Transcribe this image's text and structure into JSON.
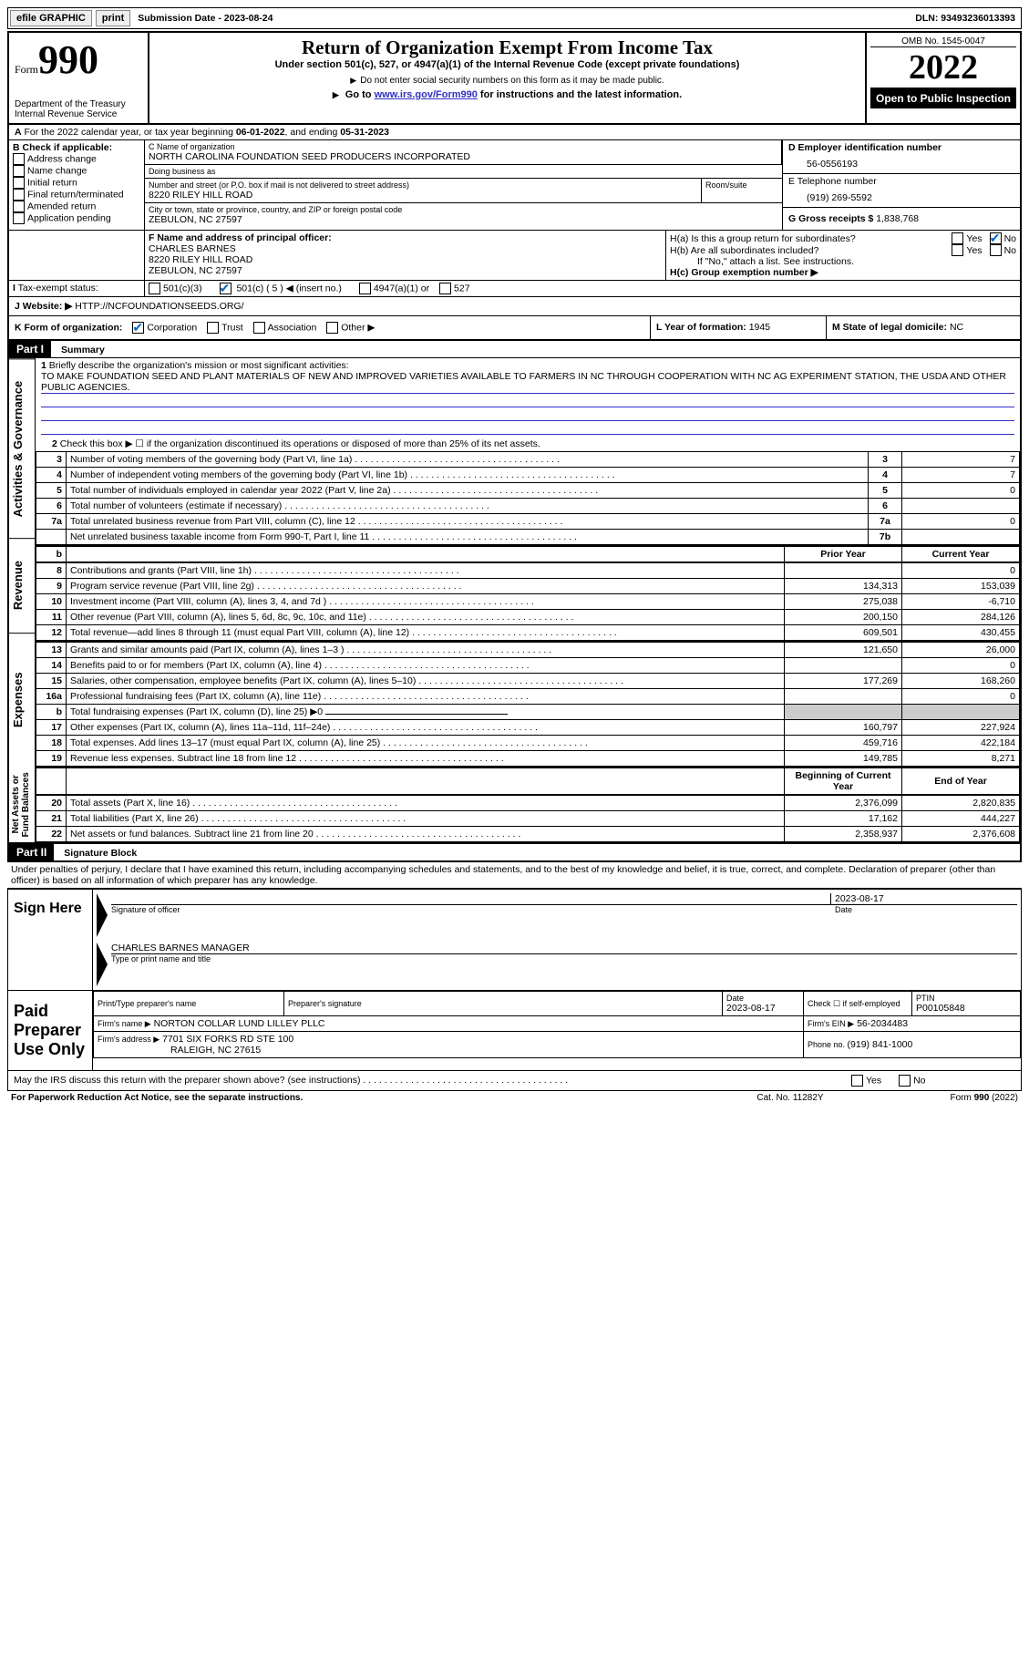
{
  "topbar": {
    "efile": "efile GRAPHIC",
    "print": "print",
    "subdate_label": "Submission Date - ",
    "subdate": "2023-08-24",
    "dln_label": "DLN: ",
    "dln": "93493236013393"
  },
  "header": {
    "form_word": "Form",
    "form_num": "990",
    "dept": "Department of the Treasury",
    "irs": "Internal Revenue Service",
    "title": "Return of Organization Exempt From Income Tax",
    "sub1": "Under section 501(c), 527, or 4947(a)(1) of the Internal Revenue Code (except private foundations)",
    "sub2": "Do not enter social security numbers on this form as it may be made public.",
    "sub3_a": "Go to ",
    "sub3_link": "www.irs.gov/Form990",
    "sub3_b": " for instructions and the latest information.",
    "omb": "OMB No. 1545-0047",
    "year": "2022",
    "open": "Open to Public Inspection"
  },
  "A": {
    "text_a": "For the 2022 calendar year, or tax year beginning ",
    "begin": "06-01-2022",
    "text_b": ", and ending ",
    "end": "05-31-2023"
  },
  "B": {
    "label": "B Check if applicable:",
    "items": [
      "Address change",
      "Name change",
      "Initial return",
      "Final return/terminated",
      "Amended return",
      "Application pending"
    ]
  },
  "C": {
    "name_label": "C Name of organization",
    "name": "NORTH CAROLINA FOUNDATION SEED PRODUCERS INCORPORATED",
    "dba": "Doing business as",
    "addr_label": "Number and street (or P.O. box if mail is not delivered to street address)",
    "room": "Room/suite",
    "addr": "8220 RILEY HILL ROAD",
    "city_label": "City or town, state or province, country, and ZIP or foreign postal code",
    "city": "ZEBULON, NC  27597"
  },
  "D": {
    "label": "D Employer identification number",
    "val": "56-0556193"
  },
  "E": {
    "label": "E Telephone number",
    "val": "(919) 269-5592"
  },
  "G": {
    "label": "G Gross receipts $ ",
    "val": "1,838,768"
  },
  "F": {
    "label": "F Name and address of principal officer:",
    "name": "CHARLES BARNES",
    "addr": "8220 RILEY HILL ROAD",
    "city": "ZEBULON, NC  27597"
  },
  "H": {
    "a": "H(a)  Is this a group return for subordinates?",
    "b": "H(b)  Are all subordinates included?",
    "b_note": "If \"No,\" attach a list. See instructions.",
    "c": "H(c)  Group exemption number ▶",
    "yes": "Yes",
    "no": "No"
  },
  "I": {
    "label": "Tax-exempt status:",
    "opt1": "501(c)(3)",
    "opt2a": "501(c) ( ",
    "opt2b": "5",
    "opt2c": " ) ◀ (insert no.)",
    "opt3": "4947(a)(1) or",
    "opt4": "527"
  },
  "J": {
    "label": "Website: ▶",
    "val": "HTTP://NCFOUNDATIONSEEDS.ORG/"
  },
  "K": {
    "label": "K Form of organization:",
    "corp": "Corporation",
    "trust": "Trust",
    "assoc": "Association",
    "other": "Other ▶"
  },
  "L": {
    "label": "L Year of formation: ",
    "val": "1945"
  },
  "M": {
    "label": "M State of legal domicile: ",
    "val": "NC"
  },
  "part1": {
    "num": "Part I",
    "title": "Summary"
  },
  "sections": {
    "gov": "Activities & Governance",
    "rev": "Revenue",
    "exp": "Expenses",
    "net": "Net Assets or Fund Balances"
  },
  "line1": {
    "num": "1",
    "text": "Briefly describe the organization's mission or most significant activities:",
    "mission": "TO MAKE FOUNDATION SEED AND PLANT MATERIALS OF NEW AND IMPROVED VARIETIES AVAILABLE TO FARMERS IN NC THROUGH COOPERATION WITH NC AG EXPERIMENT STATION, THE USDA AND OTHER PUBLIC AGENCIES."
  },
  "line2": {
    "num": "2",
    "text": "Check this box ▶ ☐ if the organization discontinued its operations or disposed of more than 25% of its net assets."
  },
  "gov_lines": [
    {
      "n": "3",
      "t": "Number of voting members of the governing body (Part VI, line 1a)",
      "box": "3",
      "v": "7"
    },
    {
      "n": "4",
      "t": "Number of independent voting members of the governing body (Part VI, line 1b)",
      "box": "4",
      "v": "7"
    },
    {
      "n": "5",
      "t": "Total number of individuals employed in calendar year 2022 (Part V, line 2a)",
      "box": "5",
      "v": "0"
    },
    {
      "n": "6",
      "t": "Total number of volunteers (estimate if necessary)",
      "box": "6",
      "v": ""
    },
    {
      "n": "7a",
      "t": "Total unrelated business revenue from Part VIII, column (C), line 12",
      "box": "7a",
      "v": "0"
    },
    {
      "n": "",
      "t": "Net unrelated business taxable income from Form 990-T, Part I, line 11",
      "box": "7b",
      "v": ""
    }
  ],
  "col_headers": {
    "b": "b",
    "prior": "Prior Year",
    "current": "Current Year"
  },
  "rev_lines": [
    {
      "n": "8",
      "t": "Contributions and grants (Part VIII, line 1h)",
      "p": "",
      "c": "0"
    },
    {
      "n": "9",
      "t": "Program service revenue (Part VIII, line 2g)",
      "p": "134,313",
      "c": "153,039"
    },
    {
      "n": "10",
      "t": "Investment income (Part VIII, column (A), lines 3, 4, and 7d )",
      "p": "275,038",
      "c": "-6,710"
    },
    {
      "n": "11",
      "t": "Other revenue (Part VIII, column (A), lines 5, 6d, 8c, 9c, 10c, and 11e)",
      "p": "200,150",
      "c": "284,126"
    },
    {
      "n": "12",
      "t": "Total revenue—add lines 8 through 11 (must equal Part VIII, column (A), line 12)",
      "p": "609,501",
      "c": "430,455"
    }
  ],
  "exp_lines": [
    {
      "n": "13",
      "t": "Grants and similar amounts paid (Part IX, column (A), lines 1–3 )",
      "p": "121,650",
      "c": "26,000"
    },
    {
      "n": "14",
      "t": "Benefits paid to or for members (Part IX, column (A), line 4)",
      "p": "",
      "c": "0"
    },
    {
      "n": "15",
      "t": "Salaries, other compensation, employee benefits (Part IX, column (A), lines 5–10)",
      "p": "177,269",
      "c": "168,260"
    },
    {
      "n": "16a",
      "t": "Professional fundraising fees (Part IX, column (A), line 11e)",
      "p": "",
      "c": "0"
    },
    {
      "n": "b",
      "t": "Total fundraising expenses (Part IX, column (D), line 25) ▶0",
      "p": "shade",
      "c": "shade"
    },
    {
      "n": "17",
      "t": "Other expenses (Part IX, column (A), lines 11a–11d, 11f–24e)",
      "p": "160,797",
      "c": "227,924"
    },
    {
      "n": "18",
      "t": "Total expenses. Add lines 13–17 (must equal Part IX, column (A), line 25)",
      "p": "459,716",
      "c": "422,184"
    },
    {
      "n": "19",
      "t": "Revenue less expenses. Subtract line 18 from line 12",
      "p": "149,785",
      "c": "8,271"
    }
  ],
  "net_headers": {
    "begin": "Beginning of Current Year",
    "end": "End of Year"
  },
  "net_lines": [
    {
      "n": "20",
      "t": "Total assets (Part X, line 16)",
      "p": "2,376,099",
      "c": "2,820,835"
    },
    {
      "n": "21",
      "t": "Total liabilities (Part X, line 26)",
      "p": "17,162",
      "c": "444,227"
    },
    {
      "n": "22",
      "t": "Net assets or fund balances. Subtract line 21 from line 20",
      "p": "2,358,937",
      "c": "2,376,608"
    }
  ],
  "part2": {
    "num": "Part II",
    "title": "Signature Block"
  },
  "penalties": "Under penalties of perjury, I declare that I have examined this return, including accompanying schedules and statements, and to the best of my knowledge and belief, it is true, correct, and complete. Declaration of preparer (other than officer) is based on all information of which preparer has any knowledge.",
  "sign": {
    "label": "Sign Here",
    "date": "2023-08-17",
    "sig_of": "Signature of officer",
    "date_label": "Date",
    "name": "CHARLES BARNES  MANAGER",
    "name_label": "Type or print name and title"
  },
  "paid": {
    "label": "Paid Preparer Use Only",
    "col1": "Print/Type preparer's name",
    "col2": "Preparer's signature",
    "col3_a": "Date",
    "col3_b": "2023-08-17",
    "col4_a": "Check ☐ if self-employed",
    "col5_a": "PTIN",
    "col5_b": "P00105848",
    "firm_label": "Firm's name    ▶",
    "firm": "NORTON COLLAR LUND LILLEY PLLC",
    "ein_label": "Firm's EIN ▶",
    "ein": "56-2034483",
    "addr_label": "Firm's address ▶",
    "addr1": "7701 SIX FORKS RD STE 100",
    "addr2": "RALEIGH, NC  27615",
    "phone_label": "Phone no. ",
    "phone": "(919) 841-1000"
  },
  "discuss": {
    "text": "May the IRS discuss this return with the preparer shown above? (see instructions)",
    "yes": "Yes",
    "no": "No"
  },
  "footer": {
    "left": "For Paperwork Reduction Act Notice, see the separate instructions.",
    "mid": "Cat. No. 11282Y",
    "right": "Form 990 (2022)"
  }
}
